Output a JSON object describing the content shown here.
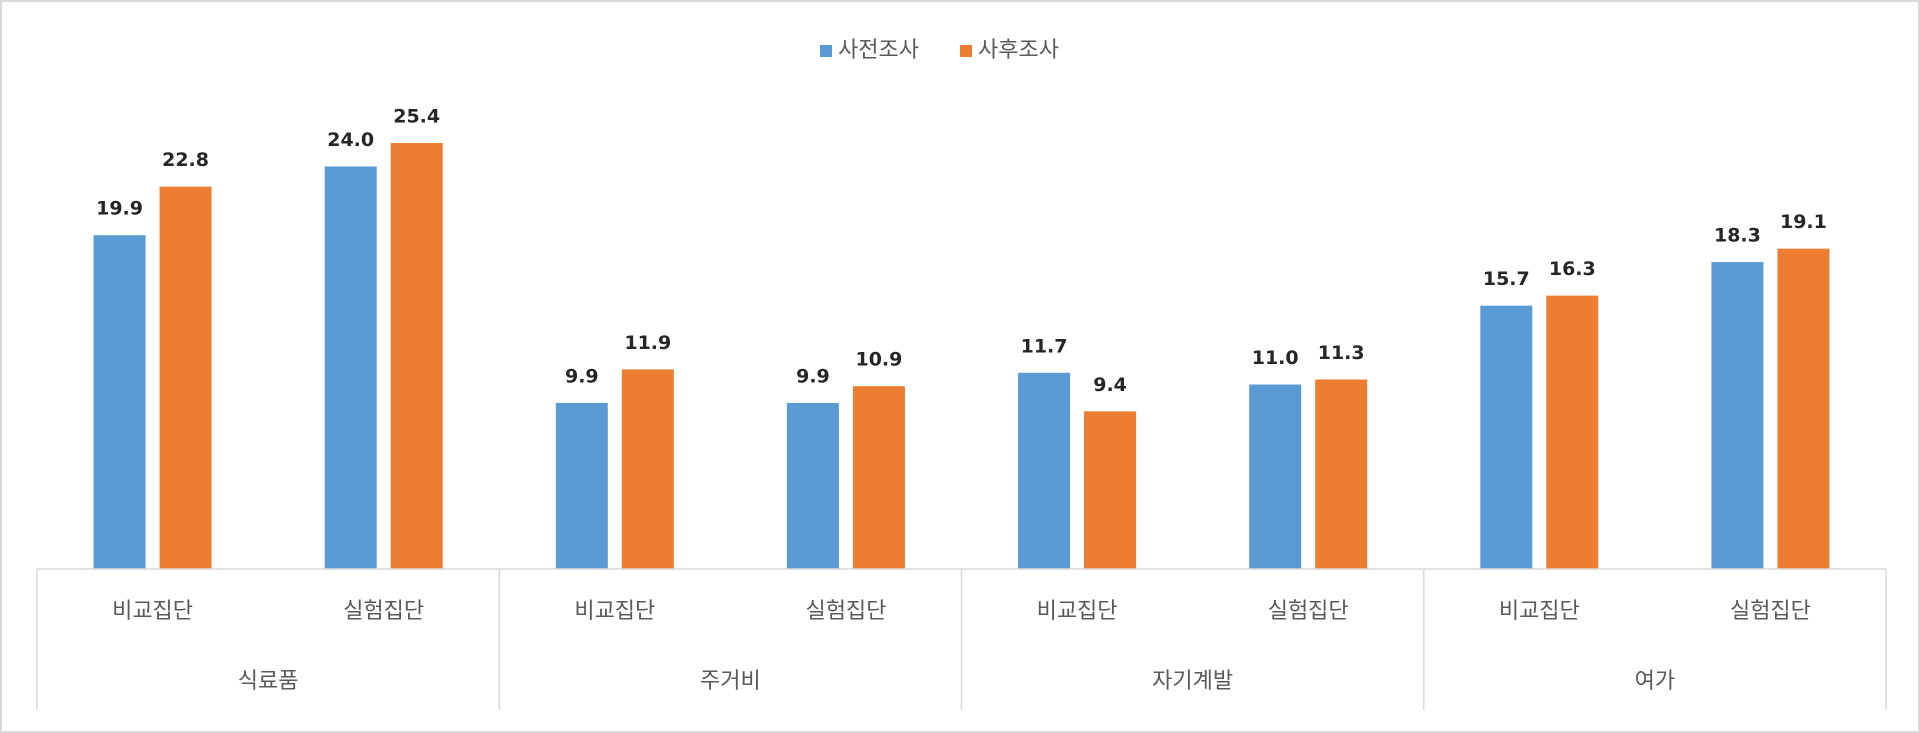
{
  "chart_data": {
    "type": "bar",
    "categories": [
      "비교집단",
      "실험집단",
      "비교집단",
      "실험집단",
      "비교집단",
      "실험집단",
      "비교집단",
      "실험집단"
    ],
    "groups": [
      "식료품",
      "주거비",
      "자기계발",
      "여가"
    ],
    "legend": "top",
    "series": [
      {
        "name": "사전조사",
        "color": "#5b9bd5",
        "values": [
          19.9,
          24.0,
          9.9,
          9.9,
          11.7,
          11.0,
          15.7,
          18.3
        ],
        "value_labels": [
          "19.9",
          "24.0",
          "9.9",
          "9.9",
          "11.7",
          "11.0",
          "15.7",
          "18.3"
        ]
      },
      {
        "name": "사후조사",
        "color": "#ed7d31",
        "values": [
          22.8,
          25.4,
          11.9,
          10.9,
          9.4,
          11.3,
          16.3,
          19.1
        ],
        "value_labels": [
          "22.8",
          "25.4",
          "11.9",
          "10.9",
          "9.4",
          "11.3",
          "16.3",
          "19.1"
        ]
      }
    ]
  }
}
